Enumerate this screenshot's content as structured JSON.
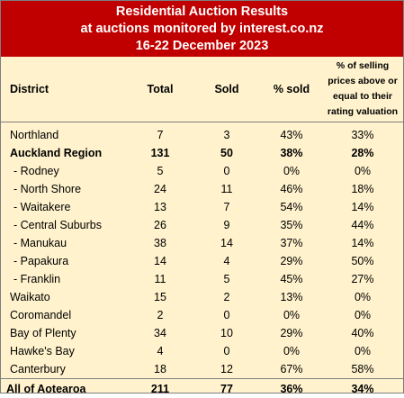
{
  "chart_data": {
    "type": "table",
    "title_lines": [
      "Residential Auction Results",
      "at auctions monitored by interest.co.nz",
      "16-22 December 2023"
    ],
    "columns": [
      "District",
      "Total",
      "Sold",
      "% sold",
      "% of selling prices above or equal to their rating valuation"
    ],
    "rows": [
      {
        "district": "Northland",
        "sub": false,
        "bold": false,
        "total": "7",
        "sold": "3",
        "pct_sold": "43%",
        "pct_rv": "33%"
      },
      {
        "district": "Auckland Region",
        "sub": false,
        "bold": true,
        "total": "131",
        "sold": "50",
        "pct_sold": "38%",
        "pct_rv": "28%"
      },
      {
        "district": "- Rodney",
        "sub": true,
        "bold": false,
        "total": "5",
        "sold": "0",
        "pct_sold": "0%",
        "pct_rv": "0%"
      },
      {
        "district": "- North Shore",
        "sub": true,
        "bold": false,
        "total": "24",
        "sold": "11",
        "pct_sold": "46%",
        "pct_rv": "18%"
      },
      {
        "district": "- Waitakere",
        "sub": true,
        "bold": false,
        "total": "13",
        "sold": "7",
        "pct_sold": "54%",
        "pct_rv": "14%"
      },
      {
        "district": "- Central Suburbs",
        "sub": true,
        "bold": false,
        "total": "26",
        "sold": "9",
        "pct_sold": "35%",
        "pct_rv": "44%"
      },
      {
        "district": "- Manukau",
        "sub": true,
        "bold": false,
        "total": "38",
        "sold": "14",
        "pct_sold": "37%",
        "pct_rv": "14%"
      },
      {
        "district": "- Papakura",
        "sub": true,
        "bold": false,
        "total": "14",
        "sold": "4",
        "pct_sold": "29%",
        "pct_rv": "50%"
      },
      {
        "district": "- Franklin",
        "sub": true,
        "bold": false,
        "total": "11",
        "sold": "5",
        "pct_sold": "45%",
        "pct_rv": "27%"
      },
      {
        "district": "Waikato",
        "sub": false,
        "bold": false,
        "total": "15",
        "sold": "2",
        "pct_sold": "13%",
        "pct_rv": "0%"
      },
      {
        "district": "Coromandel",
        "sub": false,
        "bold": false,
        "total": "2",
        "sold": "0",
        "pct_sold": "0%",
        "pct_rv": "0%"
      },
      {
        "district": "Bay of Plenty",
        "sub": false,
        "bold": false,
        "total": "34",
        "sold": "10",
        "pct_sold": "29%",
        "pct_rv": "40%"
      },
      {
        "district": "Hawke's Bay",
        "sub": false,
        "bold": false,
        "total": "4",
        "sold": "0",
        "pct_sold": "0%",
        "pct_rv": "0%"
      },
      {
        "district": "Canterbury",
        "sub": false,
        "bold": false,
        "total": "18",
        "sold": "12",
        "pct_sold": "67%",
        "pct_rv": "58%"
      }
    ],
    "total_row": {
      "district": "All of Aotearoa",
      "total": "211",
      "sold": "77",
      "pct_sold": "36%",
      "pct_rv": "34%"
    },
    "colors": {
      "title_bg": "#c00000",
      "title_text": "#ffffff",
      "body_bg": "#fff2cc",
      "rule": "#7f7f7f"
    }
  }
}
